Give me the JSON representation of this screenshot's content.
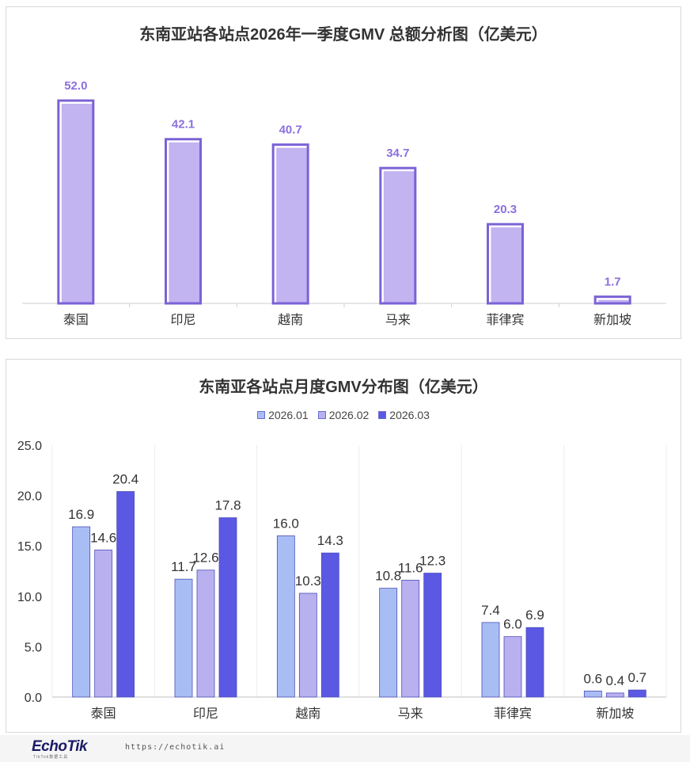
{
  "chart_data": [
    {
      "type": "bar",
      "title": "东南亚站各站点2026年一季度GMV 总额分析图（亿美元）",
      "categories": [
        "泰国",
        "印尼",
        "越南",
        "马来",
        "菲律宾",
        "新加坡"
      ],
      "values": [
        52.0,
        42.1,
        40.7,
        34.7,
        20.3,
        1.7
      ],
      "value_labels": [
        "52.0",
        "42.1",
        "40.7",
        "34.7",
        "20.3",
        "1.7"
      ],
      "ylim": [
        0,
        52.0
      ],
      "grid": false,
      "colors": {
        "bar": "#c2b3f1",
        "outline": "#7b62d6",
        "label": "#8b6fe0"
      }
    },
    {
      "type": "bar",
      "title": "东南亚各站点月度GMV分布图（亿美元）",
      "categories": [
        "泰国",
        "印尼",
        "越南",
        "马来",
        "菲律宾",
        "新加坡"
      ],
      "series": [
        {
          "name": "2026.01",
          "values": [
            16.9,
            11.7,
            16.0,
            10.8,
            7.4,
            0.6
          ],
          "labels": [
            "16.9",
            "11.7",
            "16.0",
            "10.8",
            "7.4",
            "0.6"
          ],
          "color": "#a9bdf5"
        },
        {
          "name": "2026.02",
          "values": [
            14.6,
            12.6,
            10.3,
            11.6,
            6.0,
            0.4
          ],
          "labels": [
            "14.6",
            "12.6",
            "10.3",
            "11.6",
            "6.0",
            "0.4"
          ],
          "color": "#b9b0f0"
        },
        {
          "name": "2026.03",
          "values": [
            20.4,
            17.8,
            14.3,
            12.3,
            6.9,
            0.7
          ],
          "labels": [
            "20.4",
            "17.8",
            "14.3",
            "12.3",
            "6.9",
            "0.7"
          ],
          "color": "#5b58e4"
        }
      ],
      "yticks": [
        "0.0",
        "5.0",
        "10.0",
        "15.0",
        "20.0",
        "25.0"
      ],
      "ylim": [
        0,
        25
      ],
      "grid": true,
      "legend": "top-center"
    }
  ],
  "footer": {
    "logo": "EchoTik",
    "logo_sub": "TikTok数据工具",
    "url": "https://echotik.ai"
  }
}
